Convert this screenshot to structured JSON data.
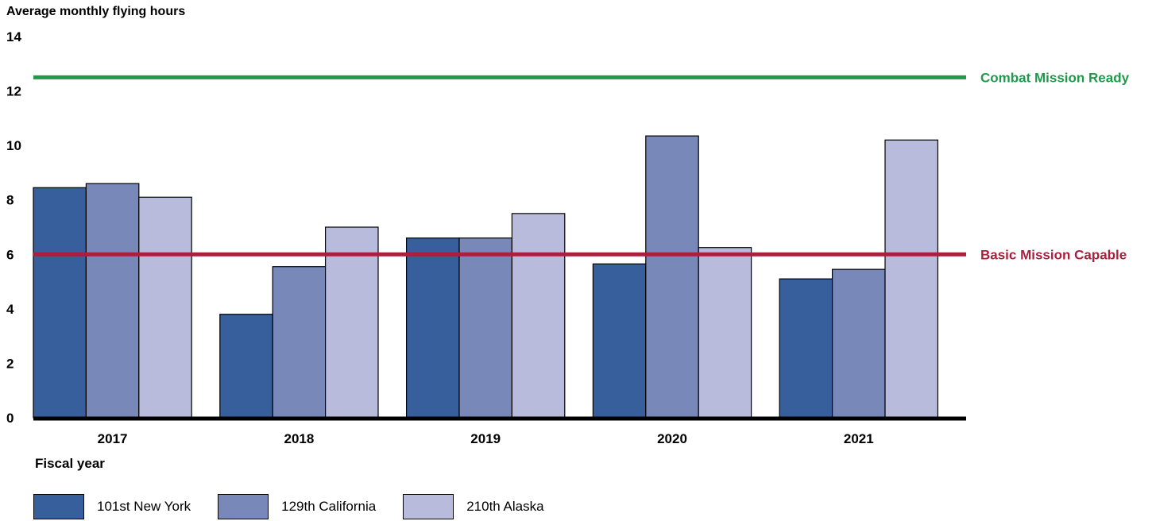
{
  "chart_data": {
    "type": "bar",
    "ylabel": "Average monthly flying hours",
    "xlabel": "Fiscal year",
    "ylim": [
      0,
      14
    ],
    "yticks": [
      0,
      2,
      4,
      6,
      8,
      10,
      12,
      14
    ],
    "categories": [
      "2017",
      "2018",
      "2019",
      "2020",
      "2021"
    ],
    "series": [
      {
        "name": "101st New York",
        "color": "#365f9b",
        "values": [
          8.45,
          3.8,
          6.6,
          5.65,
          5.1
        ]
      },
      {
        "name": "129th California",
        "color": "#7889b9",
        "values": [
          8.6,
          5.55,
          6.6,
          10.35,
          5.45
        ]
      },
      {
        "name": "210th Alaska",
        "color": "#b8bbdb",
        "values": [
          8.1,
          7.0,
          7.5,
          6.25,
          10.2
        ]
      }
    ],
    "reference_lines": [
      {
        "label": "Combat Mission Ready",
        "value": 12.5,
        "color": "#1f9a4a"
      },
      {
        "label": "Basic Mission Capable",
        "value": 6.0,
        "color": "#aa1f3c"
      }
    ],
    "grid": false,
    "legend_position": "bottom-left"
  }
}
